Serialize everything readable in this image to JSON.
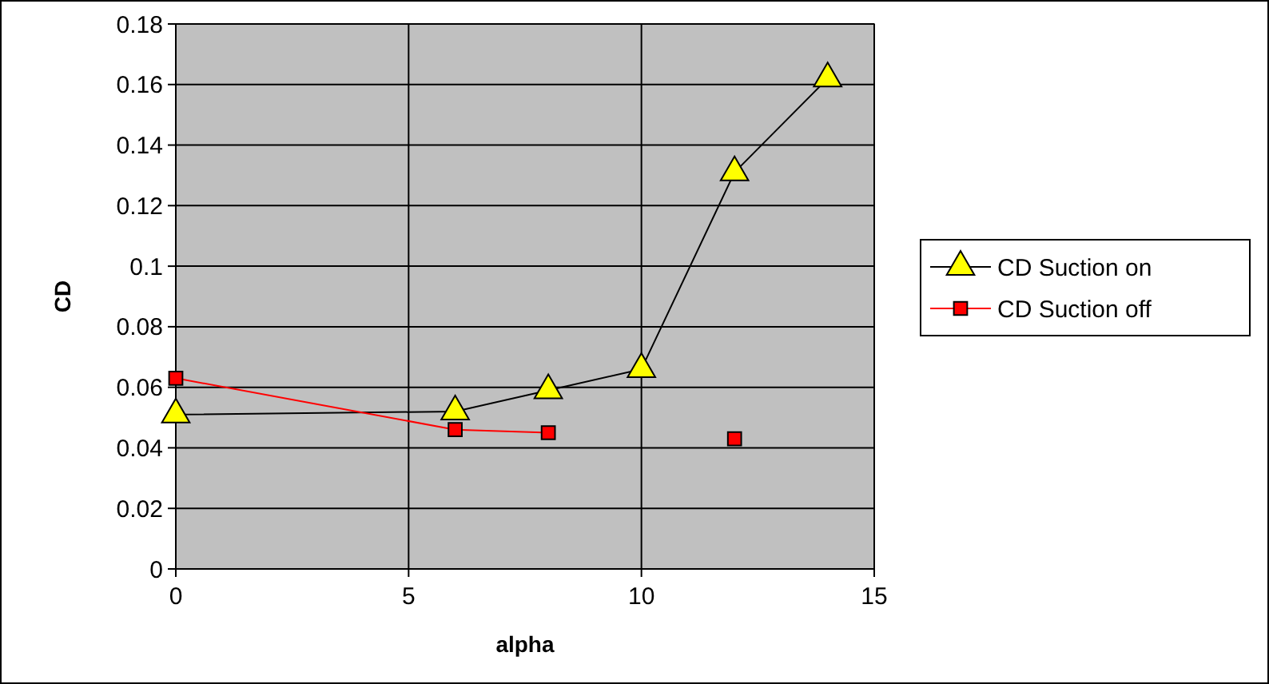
{
  "chart_data": {
    "type": "line",
    "xlabel": "alpha",
    "ylabel": "CD",
    "x": [
      0,
      6,
      8,
      10,
      12,
      14
    ],
    "series": [
      {
        "name": "CD Suction on",
        "color": "#000000",
        "colors": [
          "#ffff00",
          "#ffff00",
          "#ffff00",
          "#ffff00",
          "#ffff00",
          "#ffff00"
        ],
        "marker": "triangle",
        "values": [
          0.051,
          0.052,
          0.059,
          0.066,
          0.131,
          0.162
        ]
      },
      {
        "name": "CD Suction off",
        "color": "#ff0000",
        "marker": "square",
        "values": [
          0.063,
          0.046,
          0.045,
          null,
          0.043,
          null
        ]
      }
    ],
    "xlim": [
      0,
      15
    ],
    "xticks": [
      0,
      5,
      10,
      15
    ],
    "ylim": [
      0,
      0.18
    ],
    "yticks": [
      0,
      {
        "value": 0.02,
        "label": "0.02"
      },
      {
        "value": 0.04,
        "label": "0.04"
      },
      {
        "value": 0.06,
        "label": "0.06"
      },
      {
        "value": 0.08,
        "label": "0.08"
      },
      {
        "value": 0.1,
        "label": "0.1"
      },
      {
        "value": 0.12,
        "label": "0.12"
      },
      {
        "value": 0.14,
        "label": "0.14"
      },
      {
        "value": 0.16,
        "label": "0.16"
      },
      {
        "value": 0.18,
        "label": "0.18"
      }
    ],
    "grid": true,
    "legend": "right"
  }
}
